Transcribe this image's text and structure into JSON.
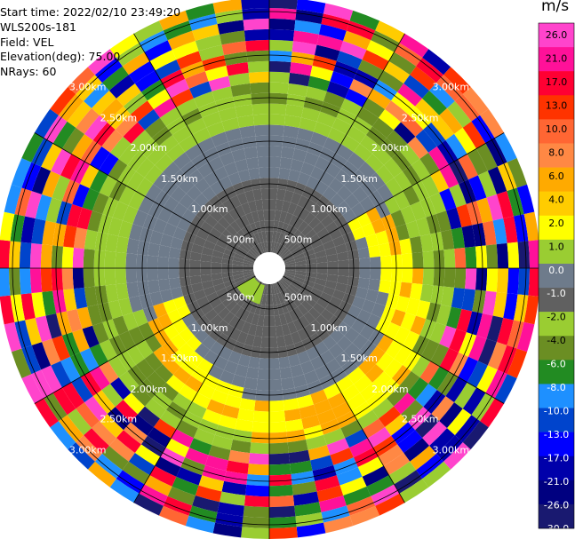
{
  "header": {
    "start_time": "Start time: 2022/02/10 23:49:20",
    "instrument": "WLS200s-181",
    "field": "Field: VEL",
    "elevation": "Elevation(deg): 75.00",
    "nrays": "NRays: 60"
  },
  "range_labels": [
    "500m",
    "1.00km",
    "1.50km",
    "2.00km",
    "2.50km",
    "3.00km"
  ],
  "colorbar": {
    "unit": "m/s",
    "ticks": [
      "26.0",
      "21.0",
      "17.0",
      "13.0",
      "10.0",
      "8.0",
      "6.0",
      "4.0",
      "2.0",
      "1.0",
      "0.0",
      "-1.0",
      "-2.0",
      "-4.0",
      "-6.0",
      "-8.0",
      "-10.0",
      "-13.0",
      "-17.0",
      "-21.0",
      "-26.0",
      "-30.0"
    ],
    "colors": [
      "#ff44cc",
      "#ff1199",
      "#ff0033",
      "#ff3300",
      "#ff6633",
      "#ff8844",
      "#ffaa00",
      "#ffcc00",
      "#ffff00",
      "#9acd32",
      "#6e7b8b",
      "#606060",
      "#9acd32",
      "#6b8e23",
      "#228b22",
      "#1e90ff",
      "#0044cc",
      "#0000ff",
      "#0000aa",
      "#000080",
      "#191970"
    ]
  }
}
